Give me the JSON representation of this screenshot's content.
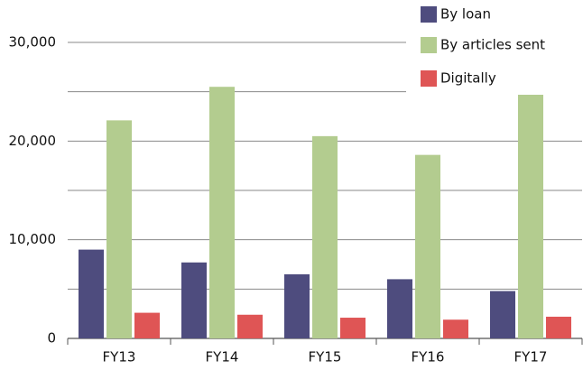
{
  "chart_data": {
    "type": "bar",
    "categories": [
      "FY13",
      "FY14",
      "FY15",
      "FY16",
      "FY17"
    ],
    "series": [
      {
        "name": "By loan",
        "color": "#4e4c7e",
        "values": [
          9000,
          7700,
          6500,
          6000,
          4800
        ]
      },
      {
        "name": "By articles sent",
        "color": "#b3cc8f",
        "values": [
          22100,
          25500,
          20500,
          18600,
          26200
        ]
      },
      {
        "name": "Digitally",
        "color": "#df5555",
        "values": [
          2600,
          2400,
          2100,
          1900,
          2200
        ]
      }
    ],
    "ylim": [
      0,
      30000
    ],
    "yticks": [
      0,
      {
        "value": 10000,
        "label": "10,000"
      },
      {
        "value": 20000,
        "label": "20,000"
      },
      {
        "value": 30000,
        "label": "30,000"
      }
    ],
    "minor_yticks": [
      5000,
      15000,
      25000
    ],
    "grid": true,
    "legend": "top-right"
  }
}
